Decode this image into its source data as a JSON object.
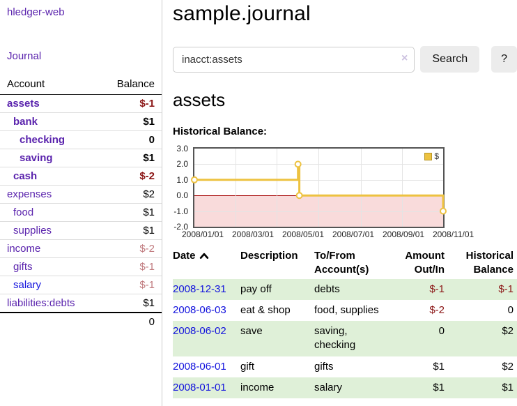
{
  "colors": {
    "link_visited_purple": "#5a23ad",
    "link_blue": "#1111dd",
    "negative_red": "#8b1515",
    "negative_red_faded": "#c07a7e",
    "row_green": "#dff0d8",
    "button_gray": "#ececec"
  },
  "sidebar": {
    "brand": "hledger-web",
    "nav": [
      {
        "label": "Journal"
      }
    ],
    "table_headers": {
      "account": "Account",
      "balance": "Balance"
    },
    "accounts": [
      {
        "name": "assets",
        "depth": 0,
        "bold": true,
        "balance": "$-1"
      },
      {
        "name": "bank",
        "depth": 1,
        "bold": true,
        "balance": "$1"
      },
      {
        "name": "checking",
        "depth": 2,
        "bold": true,
        "balance": "0"
      },
      {
        "name": "saving",
        "depth": 2,
        "bold": true,
        "balance": "$1"
      },
      {
        "name": "cash",
        "depth": 1,
        "bold": true,
        "balance": "$-2"
      },
      {
        "name": "expenses",
        "depth": 0,
        "bold": false,
        "balance": "$2"
      },
      {
        "name": "food",
        "depth": 1,
        "bold": false,
        "balance": "$1"
      },
      {
        "name": "supplies",
        "depth": 1,
        "bold": false,
        "balance": "$1"
      },
      {
        "name": "income",
        "depth": 0,
        "bold": false,
        "balance": "$-2"
      },
      {
        "name": "gifts",
        "depth": 1,
        "bold": false,
        "balance": "$-1"
      },
      {
        "name": "salary",
        "depth": 1,
        "bold": false,
        "balance": "$-1",
        "link_style": "unvisited"
      },
      {
        "name": "liabilities:debts",
        "depth": 0,
        "bold": false,
        "balance": "$1"
      }
    ],
    "total": "0"
  },
  "main": {
    "title": "sample.journal",
    "search": {
      "value": "inacct:assets",
      "clear_icon": "×",
      "submit_label": "Search",
      "help_label": "?"
    },
    "section_heading": "assets"
  },
  "chart_data": {
    "type": "line",
    "style": "step-after",
    "title": "Historical Balance:",
    "legend": "$",
    "legend_position": "top-right",
    "series": [
      {
        "name": "$",
        "points": [
          [
            "2008-01-01",
            1
          ],
          [
            "2008-06-01",
            2
          ],
          [
            "2008-06-03",
            0
          ],
          [
            "2008-12-31",
            -1
          ]
        ]
      }
    ],
    "x_ticks": [
      "2008/01/01",
      "2008/03/01",
      "2008/05/01",
      "2008/07/01",
      "2008/09/01",
      "2008/11/01"
    ],
    "y_ticks": [
      "3.0",
      "2.0",
      "1.0",
      "0.0",
      "-1.0",
      "-2.0"
    ],
    "ylim": [
      -2,
      3
    ],
    "xlim": [
      "2008-01-01",
      "2008-12-31"
    ],
    "grid": true,
    "line_color": "#EDC240",
    "marker_fill": "#ffffff",
    "negative_fill": "#f9dbdb",
    "zero_line_color": "#a40000"
  },
  "register": {
    "headers": [
      "Date",
      "Description",
      "To/From Account(s)",
      "Amount Out/In",
      "Historical Balance"
    ],
    "sort": {
      "column": "Date",
      "icon": "chevron-up-icon",
      "direction": "ascending"
    },
    "rows": [
      {
        "date": "2008-12-31",
        "description": "pay off",
        "accounts": "debts",
        "amount": "$-1",
        "balance": "$-1"
      },
      {
        "date": "2008-06-03",
        "description": "eat & shop",
        "accounts": "food, supplies",
        "amount": "$-2",
        "balance": "0"
      },
      {
        "date": "2008-06-02",
        "description": "save",
        "accounts": "saving, checking",
        "amount": "0",
        "balance": "$2"
      },
      {
        "date": "2008-06-01",
        "description": "gift",
        "accounts": "gifts",
        "amount": "$1",
        "balance": "$2"
      },
      {
        "date": "2008-01-01",
        "description": "income",
        "accounts": "salary",
        "amount": "$1",
        "balance": "$1"
      }
    ]
  }
}
